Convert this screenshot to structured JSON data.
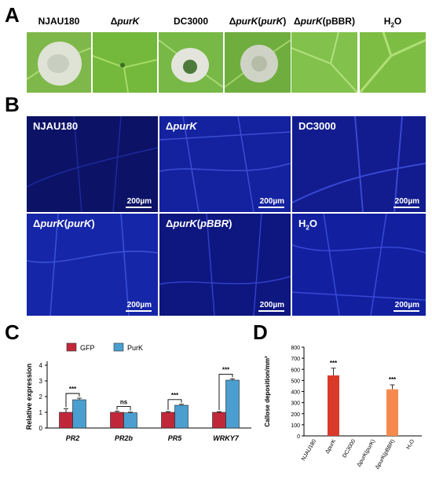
{
  "panels": {
    "a": "A",
    "b": "B",
    "c": "C",
    "d": "D"
  },
  "panel_a": {
    "labels": [
      {
        "delta": "",
        "text": "NJAU180",
        "suffix": ""
      },
      {
        "delta": "Δ",
        "text": "purK",
        "suffix": ""
      },
      {
        "delta": "",
        "text": "DC3000",
        "suffix": ""
      },
      {
        "delta": "Δ",
        "text": "purK",
        "suffix": "(purK)"
      },
      {
        "delta": "Δ",
        "text": "purK",
        "suffix": "(pBBR)"
      },
      {
        "delta": "",
        "text": "H",
        "suffix": "2O"
      }
    ]
  },
  "panel_b": {
    "scale_label": "200µm",
    "images": [
      {
        "delta": "",
        "text": "NJAU180",
        "suffix": ""
      },
      {
        "delta": "Δ",
        "text": "purK",
        "suffix": ""
      },
      {
        "delta": "",
        "text": "DC3000",
        "suffix": ""
      },
      {
        "delta": "Δ",
        "text": "purK",
        "suffix": "(purK)"
      },
      {
        "delta": "Δ",
        "text": "purK",
        "suffix": "(pBBR)"
      },
      {
        "delta": "",
        "text": "H",
        "suffix": "2O"
      }
    ]
  },
  "chart_data": [
    {
      "type": "bar",
      "panel": "C",
      "ylabel": "Relative  expression",
      "ylim": [
        0,
        4
      ],
      "yticks": [
        "0",
        "1",
        "2",
        "3",
        "4"
      ],
      "categories": [
        "PR2",
        "PR2b",
        "PR5",
        "WRKY7"
      ],
      "series": [
        {
          "name": "GFP",
          "color": "#c0283a",
          "values": [
            1.0,
            1.0,
            1.0,
            1.0
          ],
          "errors": [
            0.22,
            0.07,
            0.05,
            0.04
          ]
        },
        {
          "name": "PurK",
          "color": "#4a9fd0",
          "values": [
            1.8,
            0.97,
            1.45,
            3.05
          ],
          "errors": [
            0.1,
            0.04,
            0.06,
            0.08
          ]
        }
      ],
      "significance": [
        "***",
        "ns",
        "***",
        "***"
      ],
      "legend": "top"
    },
    {
      "type": "bar",
      "panel": "D",
      "ylabel": "Callose deposition/mm²",
      "ylim": [
        0,
        800
      ],
      "yticks": [
        "0",
        "100",
        "200",
        "300",
        "400",
        "500",
        "600",
        "700",
        "800"
      ],
      "categories": [
        "NJAU180",
        "ΔpurK",
        "DC3000",
        "ΔpurK(purK)",
        "ΔpurK(pBBR)",
        "H₂O"
      ],
      "values": [
        0,
        545,
        0,
        0,
        420,
        0
      ],
      "errors": [
        0,
        65,
        0,
        0,
        40,
        0
      ],
      "colors": [
        "#d8d8d8",
        "#d93a2a",
        "#d8d8d8",
        "#d8d8d8",
        "#f58a4f",
        "#d8d8d8"
      ],
      "significance": [
        "",
        "***",
        "",
        "",
        "***",
        ""
      ]
    }
  ]
}
